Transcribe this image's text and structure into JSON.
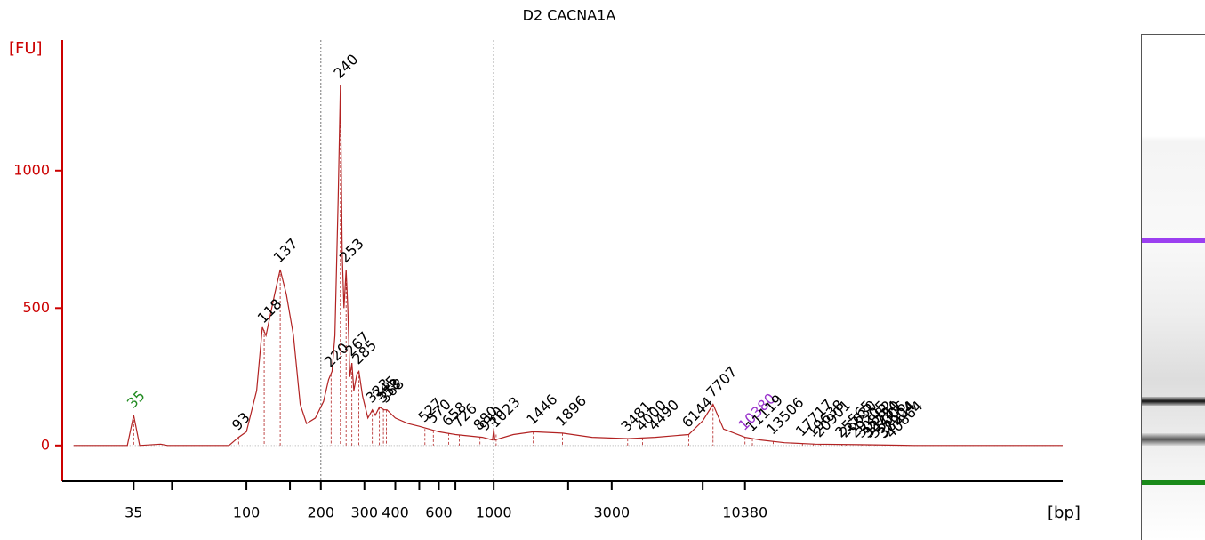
{
  "chart_data": {
    "type": "line",
    "title": "D2 CACNA1A",
    "y_label": "[FU]",
    "x_label": "[bp]",
    "log_x": true,
    "xlim": [
      18,
      200000
    ],
    "ylim": [
      -130,
      1475
    ],
    "xticks": [
      35,
      100,
      200,
      300,
      400,
      600,
      1000,
      3000,
      10380
    ],
    "xminor": [
      50,
      150,
      500,
      700,
      2000,
      7000
    ],
    "yticks": [
      0,
      500,
      1000
    ],
    "vlines": [
      200,
      1000
    ],
    "axis_color": "#cc0000",
    "series": [
      {
        "color": "#b22222",
        "x": [
          20,
          33,
          35,
          37,
          45,
          48,
          85,
          93,
          100,
          110,
          116,
          120,
          130,
          137,
          145,
          155,
          165,
          175,
          190,
          205,
          215,
          222,
          228,
          235,
          240,
          244,
          248,
          253,
          257,
          262,
          267,
          272,
          280,
          285,
          295,
          310,
          323,
          332,
          345,
          360,
          370,
          400,
          450,
          500,
          600,
          700,
          900,
          990,
          1000,
          1010,
          1200,
          1446,
          1896,
          2500,
          3500,
          4500,
          6144,
          7000,
          7707,
          8500,
          10380,
          12000,
          15000,
          20000,
          30000,
          50000,
          200000
        ],
        "values": [
          0,
          0,
          110,
          0,
          5,
          0,
          0,
          30,
          50,
          200,
          430,
          400,
          550,
          640,
          550,
          400,
          150,
          80,
          100,
          160,
          240,
          270,
          400,
          900,
          1310,
          700,
          500,
          640,
          500,
          250,
          300,
          200,
          260,
          270,
          180,
          100,
          130,
          110,
          140,
          130,
          130,
          100,
          80,
          70,
          50,
          40,
          30,
          20,
          60,
          20,
          40,
          50,
          45,
          30,
          25,
          30,
          40,
          90,
          150,
          60,
          30,
          20,
          10,
          5,
          3,
          0,
          0
        ]
      }
    ],
    "peaks": [
      {
        "bp": 35,
        "fu": 110,
        "color": "#228b22"
      },
      {
        "bp": 93,
        "fu": 30,
        "color": "#000000"
      },
      {
        "bp": 118,
        "fu": 420,
        "color": "#000000"
      },
      {
        "bp": 137,
        "fu": 640,
        "color": "#000000"
      },
      {
        "bp": 220,
        "fu": 260,
        "color": "#000000"
      },
      {
        "bp": 240,
        "fu": 1310,
        "color": "#000000"
      },
      {
        "bp": 253,
        "fu": 640,
        "color": "#000000"
      },
      {
        "bp": 267,
        "fu": 300,
        "color": "#000000"
      },
      {
        "bp": 285,
        "fu": 270,
        "color": "#000000"
      },
      {
        "bp": 323,
        "fu": 130,
        "color": "#000000"
      },
      {
        "bp": 345,
        "fu": 140,
        "color": "#000000"
      },
      {
        "bp": 358,
        "fu": 130,
        "color": "#000000"
      },
      {
        "bp": 368,
        "fu": 130,
        "color": "#000000"
      },
      {
        "bp": 527,
        "fu": 60,
        "color": "#000000"
      },
      {
        "bp": 570,
        "fu": 55,
        "color": "#000000"
      },
      {
        "bp": 658,
        "fu": 45,
        "color": "#000000"
      },
      {
        "bp": 726,
        "fu": 40,
        "color": "#000000"
      },
      {
        "bp": 880,
        "fu": 30,
        "color": "#000000"
      },
      {
        "bp": 930,
        "fu": 28,
        "color": "#000000"
      },
      {
        "bp": 1023,
        "fu": 40,
        "color": "#000000"
      },
      {
        "bp": 1446,
        "fu": 50,
        "color": "#000000"
      },
      {
        "bp": 1896,
        "fu": 45,
        "color": "#000000"
      },
      {
        "bp": 3481,
        "fu": 25,
        "color": "#000000"
      },
      {
        "bp": 4000,
        "fu": 28,
        "color": "#000000"
      },
      {
        "bp": 4490,
        "fu": 30,
        "color": "#000000"
      },
      {
        "bp": 6144,
        "fu": 40,
        "color": "#000000"
      },
      {
        "bp": 7707,
        "fu": 150,
        "color": "#000000"
      },
      {
        "bp": 10380,
        "fu": 30,
        "color": "#9932cc"
      },
      {
        "bp": 11119,
        "fu": 25,
        "color": "#000000"
      },
      {
        "bp": 13506,
        "fu": 15,
        "color": "#000000"
      },
      {
        "bp": 17717,
        "fu": 8,
        "color": "#000000"
      },
      {
        "bp": 19638,
        "fu": 6,
        "color": "#000000"
      },
      {
        "bp": 20901,
        "fu": 5,
        "color": "#000000"
      },
      {
        "bp": 25565,
        "fu": 4,
        "color": "#000000"
      },
      {
        "bp": 26630,
        "fu": 4,
        "color": "#000000"
      },
      {
        "bp": 29205,
        "fu": 3,
        "color": "#000000"
      },
      {
        "bp": 30882,
        "fu": 3,
        "color": "#000000"
      },
      {
        "bp": 32724,
        "fu": 3,
        "color": "#000000"
      },
      {
        "bp": 33250,
        "fu": 3,
        "color": "#000000"
      },
      {
        "bp": 35006,
        "fu": 2,
        "color": "#000000"
      },
      {
        "bp": 37904,
        "fu": 2,
        "color": "#000000"
      },
      {
        "bp": 38224,
        "fu": 2,
        "color": "#000000"
      },
      {
        "bp": 40864,
        "fu": 2,
        "color": "#000000"
      }
    ]
  }
}
